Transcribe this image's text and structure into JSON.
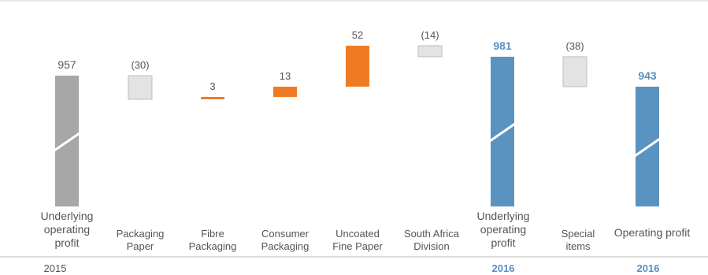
{
  "chart_data": {
    "type": "waterfall",
    "categories": [
      "Underlying operating profit",
      "Packaging Paper",
      "Fibre Packaging",
      "Consumer Packaging",
      "Uncoated Fine Paper",
      "South Africa Division",
      "Underlying operating profit",
      "Special items",
      "Operating profit"
    ],
    "values": [
      957,
      -30,
      3,
      13,
      52,
      -14,
      981,
      -38,
      943
    ],
    "value_labels": [
      "957",
      "(30)",
      "3",
      "13",
      "52",
      "(14)",
      "981",
      "(38)",
      "943"
    ],
    "bar_kinds": [
      "total-2015",
      "decrease",
      "increase",
      "increase",
      "increase",
      "decrease",
      "total-2016",
      "decrease",
      "total-2016"
    ],
    "sublabels": [
      "2015",
      "",
      "",
      "",
      "",
      "",
      "2016",
      "",
      "2016"
    ],
    "broken_axis": true,
    "colors": {
      "total_2015": "#a8a7a8",
      "total_2016": "#5b93c0",
      "increase": "#f07b25",
      "decrease": "#e3e3e3",
      "decrease_border": "#bdbdbd",
      "bold_label": "#5b8fc0",
      "text": "#555555"
    }
  }
}
